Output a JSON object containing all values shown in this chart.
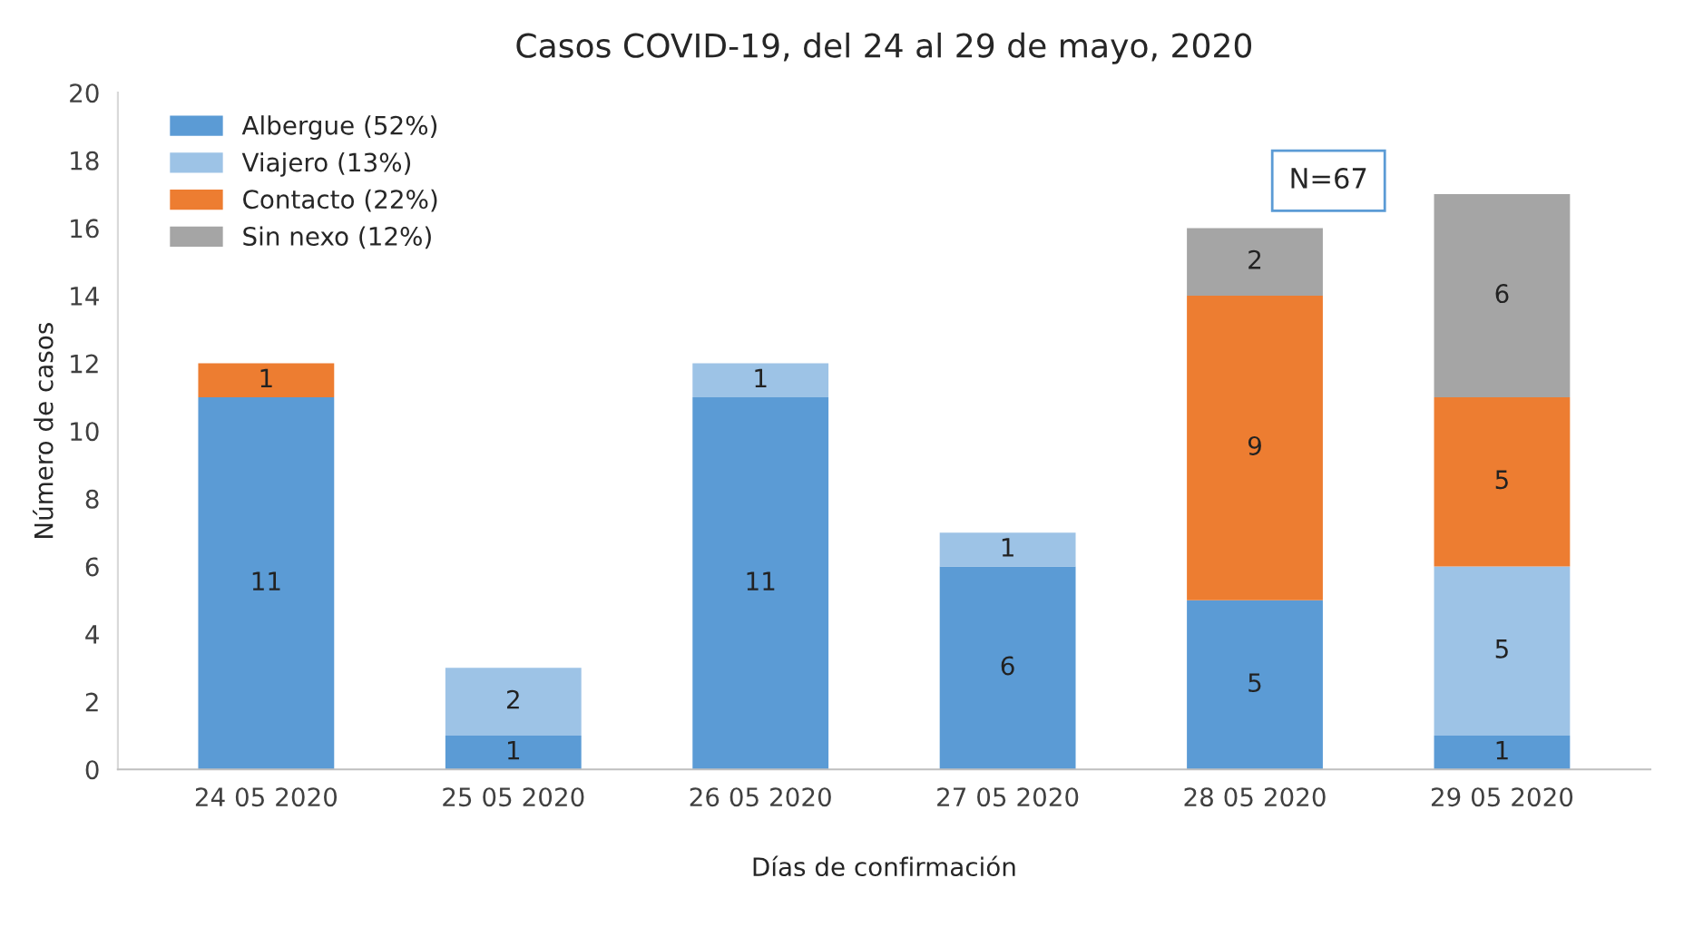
{
  "chart_data": {
    "type": "bar",
    "stacked": true,
    "title": "Casos COVID-19, del 24 al 29 de mayo, 2020",
    "xlabel": "Días de confirmación",
    "ylabel": "Número de casos",
    "categories": [
      "24 05 2020",
      "25 05 2020",
      "26 05 2020",
      "27 05 2020",
      "28 05 2020",
      "29 05 2020"
    ],
    "series": [
      {
        "name": "Albergue (52%)",
        "color": "#5b9bd5",
        "values": [
          11,
          1,
          11,
          6,
          5,
          1
        ]
      },
      {
        "name": "Viajero (13%)",
        "color": "#9dc3e6",
        "values": [
          null,
          2,
          1,
          1,
          null,
          5
        ]
      },
      {
        "name": "Contacto (22%)",
        "color": "#ed7d31",
        "values": [
          1,
          null,
          null,
          null,
          9,
          5
        ]
      },
      {
        "name": "Sin nexo (12%)",
        "color": "#a5a5a5",
        "values": [
          null,
          null,
          null,
          null,
          2,
          6
        ]
      }
    ],
    "ylim": [
      0,
      20
    ],
    "yticks": [
      0,
      2,
      4,
      6,
      8,
      10,
      12,
      14,
      16,
      18,
      20
    ],
    "data_labels": true,
    "legend": "top left",
    "grid": false,
    "annotations": [
      "N=67"
    ]
  }
}
